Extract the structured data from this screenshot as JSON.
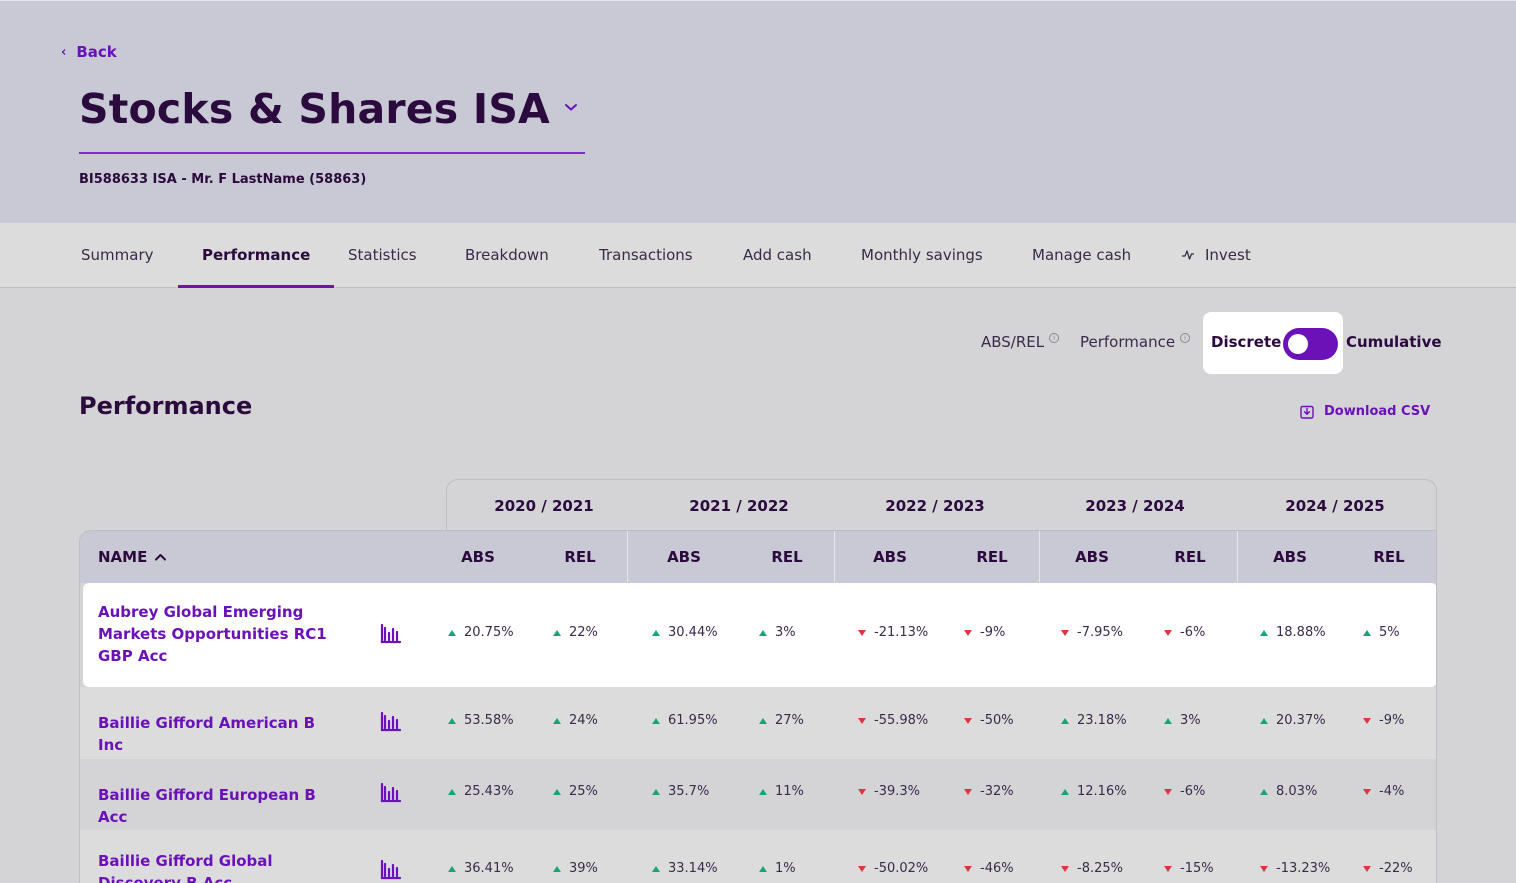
{
  "header": {
    "back_label": "Back",
    "title": "Stocks & Shares ISA",
    "account_subtitle": "BI588633 ISA - Mr. F LastName (58863)"
  },
  "tabs": [
    {
      "label": "Summary",
      "active": false
    },
    {
      "label": "Performance",
      "active": true
    },
    {
      "label": "Statistics",
      "active": false
    },
    {
      "label": "Breakdown",
      "active": false
    },
    {
      "label": "Transactions",
      "active": false
    },
    {
      "label": "Add cash",
      "active": false
    },
    {
      "label": "Monthly savings",
      "active": false
    },
    {
      "label": "Manage cash",
      "active": false
    },
    {
      "label": "Invest",
      "active": false,
      "icon": "pulse-icon"
    }
  ],
  "controls": {
    "abs_rel_label": "ABS/REL",
    "performance_label": "Performance",
    "toggle_left": "Discrete",
    "toggle_right": "Cumulative",
    "toggle_state": "Discrete"
  },
  "section": {
    "title": "Performance",
    "download_label": "Download CSV"
  },
  "table": {
    "years": [
      "2020 / 2021",
      "2021 / 2022",
      "2022 / 2023",
      "2023 / 2024",
      "2024 / 2025"
    ],
    "name_header": "NAME",
    "abs_header": "ABS",
    "rel_header": "REL",
    "rows": [
      {
        "name": "Aubrey Global Emerging Markets Opportunities RC1 GBP Acc",
        "values": [
          {
            "v": "20.75%",
            "dir": "up"
          },
          {
            "v": "22%",
            "dir": "up"
          },
          {
            "v": "30.44%",
            "dir": "up"
          },
          {
            "v": "3%",
            "dir": "up"
          },
          {
            "v": "-21.13%",
            "dir": "down"
          },
          {
            "v": "-9%",
            "dir": "down"
          },
          {
            "v": "-7.95%",
            "dir": "down"
          },
          {
            "v": "-6%",
            "dir": "down"
          },
          {
            "v": "18.88%",
            "dir": "up"
          },
          {
            "v": "5%",
            "dir": "up"
          }
        ]
      },
      {
        "name": "Baillie Gifford American B Inc",
        "values": [
          {
            "v": "53.58%",
            "dir": "up"
          },
          {
            "v": "24%",
            "dir": "up"
          },
          {
            "v": "61.95%",
            "dir": "up"
          },
          {
            "v": "27%",
            "dir": "up"
          },
          {
            "v": "-55.98%",
            "dir": "down"
          },
          {
            "v": "-50%",
            "dir": "down"
          },
          {
            "v": "23.18%",
            "dir": "up"
          },
          {
            "v": "3%",
            "dir": "up"
          },
          {
            "v": "20.37%",
            "dir": "up"
          },
          {
            "v": "-9%",
            "dir": "down"
          }
        ]
      },
      {
        "name": "Baillie Gifford European B Acc",
        "values": [
          {
            "v": "25.43%",
            "dir": "up"
          },
          {
            "v": "25%",
            "dir": "up"
          },
          {
            "v": "35.7%",
            "dir": "up"
          },
          {
            "v": "11%",
            "dir": "up"
          },
          {
            "v": "-39.3%",
            "dir": "down"
          },
          {
            "v": "-32%",
            "dir": "down"
          },
          {
            "v": "12.16%",
            "dir": "up"
          },
          {
            "v": "-6%",
            "dir": "down"
          },
          {
            "v": "8.03%",
            "dir": "up"
          },
          {
            "v": "-4%",
            "dir": "down"
          }
        ]
      },
      {
        "name": "Baillie Gifford Global Discovery B Acc",
        "values": [
          {
            "v": "36.41%",
            "dir": "up"
          },
          {
            "v": "39%",
            "dir": "up"
          },
          {
            "v": "33.14%",
            "dir": "up"
          },
          {
            "v": "1%",
            "dir": "up"
          },
          {
            "v": "-50.02%",
            "dir": "down"
          },
          {
            "v": "-46%",
            "dir": "down"
          },
          {
            "v": "-8.25%",
            "dir": "down"
          },
          {
            "v": "-15%",
            "dir": "down"
          },
          {
            "v": "-13.23%",
            "dir": "down"
          },
          {
            "v": "-22%",
            "dir": "down"
          }
        ]
      }
    ]
  },
  "colors": {
    "accent": "#6a12b8",
    "up": "#17a673",
    "down": "#e0353f",
    "header_bg": "#c9c9d6",
    "text_dark": "#2b0a3d"
  }
}
